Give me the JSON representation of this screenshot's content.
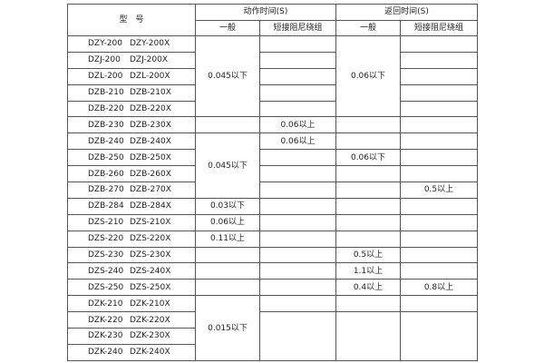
{
  "header": {
    "model": "型　号",
    "action_time": "动作时间(S)",
    "return_time": "返回时间(S)",
    "general": "一般",
    "short_damp": "短接阻尼绕组"
  },
  "rows": [
    {
      "model": [
        "DZY-200",
        "DZY-200X"
      ],
      "cells": [
        {
          "t": "0.045以下",
          "rs": 5
        },
        {
          "t": ""
        },
        {
          "t": "0.06以下",
          "rs": 5
        },
        {
          "t": ""
        }
      ]
    },
    {
      "model": [
        "DZJ-200",
        "DZJ-200X"
      ],
      "cells": [
        {
          "t": ""
        },
        {
          "t": ""
        }
      ]
    },
    {
      "model": [
        "DZL-200",
        "DZL-200X"
      ],
      "cells": [
        {
          "t": ""
        },
        {
          "t": ""
        }
      ]
    },
    {
      "model": [
        "DZB-210",
        "DZB-210X"
      ],
      "cells": [
        {
          "t": ""
        },
        {
          "t": ""
        }
      ]
    },
    {
      "model": [
        "DZB-220",
        "DZB-220X"
      ],
      "cells": [
        {
          "t": ""
        },
        {
          "t": ""
        }
      ]
    },
    {
      "model": [
        "DZB-230",
        "DZB-230X"
      ],
      "cells": [
        {
          "t": ""
        },
        {
          "t": "0.06以上"
        },
        {
          "t": ""
        },
        {
          "t": ""
        }
      ]
    },
    {
      "model": [
        "DZB-240",
        "DZB-240X"
      ],
      "cells": [
        {
          "t": "0.045以下",
          "rs": 4
        },
        {
          "t": "0.06以上"
        },
        {
          "t": ""
        },
        {
          "t": ""
        }
      ]
    },
    {
      "model": [
        "DZB-250",
        "DZB-250X"
      ],
      "cells": [
        {
          "t": ""
        },
        {
          "t": "0.06以下"
        },
        {
          "t": ""
        }
      ]
    },
    {
      "model": [
        "DZB-260",
        "DZB-260X"
      ],
      "cells": [
        {
          "t": ""
        },
        {
          "t": ""
        },
        {
          "t": ""
        }
      ]
    },
    {
      "model": [
        "DZB-270",
        "DZB-270X"
      ],
      "cells": [
        {
          "t": ""
        },
        {
          "t": ""
        },
        {
          "t": "0.5以上"
        }
      ]
    },
    {
      "model": [
        "DZB-284",
        "DZB-284X"
      ],
      "cells": [
        {
          "t": "0.03以下"
        },
        {
          "t": ""
        },
        {
          "t": ""
        },
        {
          "t": ""
        }
      ]
    },
    {
      "model": [
        "DZS-210",
        "DZS-210X"
      ],
      "cells": [
        {
          "t": "0.06以上"
        },
        {
          "t": ""
        },
        {
          "t": ""
        },
        {
          "t": ""
        }
      ]
    },
    {
      "model": [
        "DZS-220",
        "DZS-220X"
      ],
      "cells": [
        {
          "t": "0.11以上"
        },
        {
          "t": ""
        },
        {
          "t": ""
        },
        {
          "t": ""
        }
      ]
    },
    {
      "model": [
        "DZS-230",
        "DZS-230X"
      ],
      "cells": [
        {
          "t": ""
        },
        {
          "t": ""
        },
        {
          "t": "0.5以上"
        },
        {
          "t": ""
        }
      ]
    },
    {
      "model": [
        "DZS-240",
        "DZS-240X"
      ],
      "cells": [
        {
          "t": ""
        },
        {
          "t": ""
        },
        {
          "t": "1.1以上"
        },
        {
          "t": ""
        }
      ]
    },
    {
      "model": [
        "DZS-250",
        "DZS-250X"
      ],
      "cells": [
        {
          "t": ""
        },
        {
          "t": ""
        },
        {
          "t": "0.4以上"
        },
        {
          "t": "0.8以上"
        }
      ]
    },
    {
      "model": [
        "DZK-210",
        "DZK-210X"
      ],
      "cells": [
        {
          "t": "0.015以下",
          "rs": 4
        },
        {
          "t": ""
        },
        {
          "t": ""
        },
        {
          "t": ""
        }
      ]
    },
    {
      "model": [
        "DZK-220",
        "DZK-220X"
      ],
      "cells": [
        {
          "t": "",
          "rs": 3
        },
        {
          "t": "",
          "rs": 3
        },
        {
          "t": "",
          "rs": 3
        }
      ]
    },
    {
      "model": [
        "DZK-230",
        "DZK-230X"
      ],
      "cells": []
    },
    {
      "model": [
        "DZK-240",
        "DZK-240X"
      ],
      "cells": []
    }
  ]
}
